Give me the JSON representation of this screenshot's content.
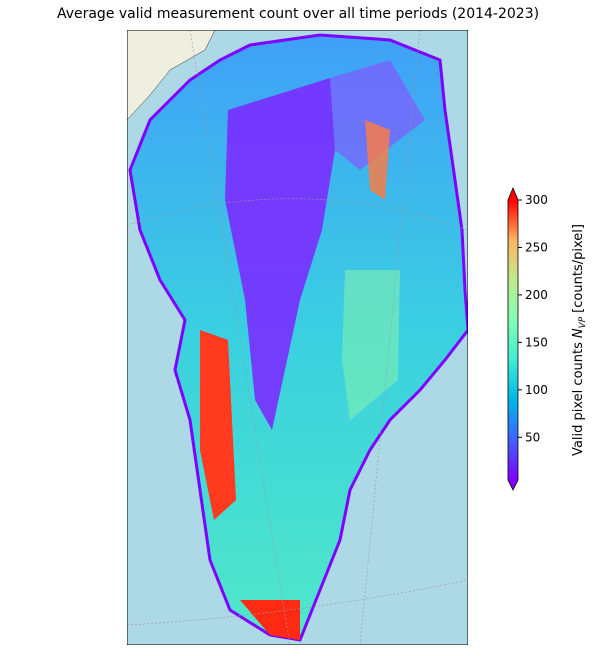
{
  "title": "Average valid measurement count over all time periods (2014-2023)",
  "colorbar": {
    "label": {
      "text": "Valid pixel counts",
      "symbol": "N",
      "subscript": "VP",
      "unit": "[counts/pixel]"
    },
    "lim": [
      5,
      300
    ],
    "ticks": [
      50,
      100,
      150,
      200,
      250,
      300
    ],
    "extend": "both",
    "colors": [
      "#8000ff",
      "#4062fa",
      "#00b5eb",
      "#40ecd4",
      "#80ffb4",
      "#c0eb8d",
      "#ffb360",
      "#ff0000"
    ]
  }
}
